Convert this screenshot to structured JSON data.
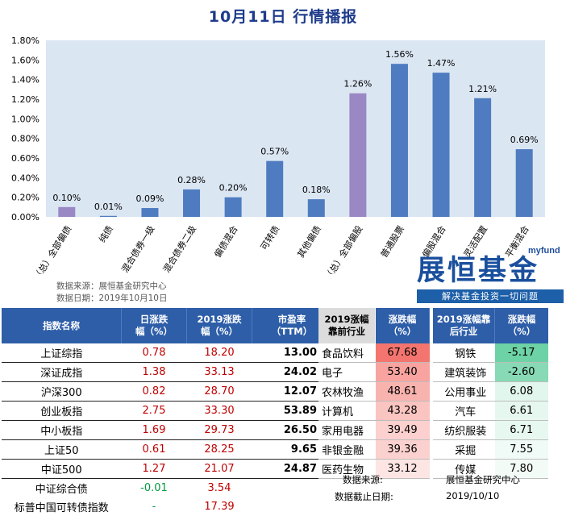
{
  "title": "10月11日  行情播报",
  "source_line": "数据来源：展恒基金研究中心",
  "date_line": "数据日期：2019年10月10日",
  "brand": {
    "top": "myfund",
    "name": "展恒基金",
    "slogan": "解决基金投资一切问题"
  },
  "colors": {
    "blue": "#4f7cc0",
    "purple": "#9a88c4",
    "red_high": "#f4756f",
    "green_low": "#6dd2a5"
  },
  "chart_data": {
    "type": "bar",
    "categories": [
      "（总）全部偏债",
      "纯债",
      "混合债券一级",
      "混合债券二级",
      "偏债混合",
      "可转债",
      "其他偏债",
      "（总）全部偏股",
      "普通股票",
      "偏股混合",
      "灵活配置",
      "平衡混合"
    ],
    "values": [
      0.1,
      0.01,
      0.09,
      0.28,
      0.2,
      0.57,
      0.18,
      1.26,
      1.56,
      1.47,
      1.21,
      0.69
    ],
    "data_labels": [
      "0.10%",
      "0.01%",
      "0.09%",
      "0.28%",
      "0.20%",
      "0.57%",
      "0.18%",
      "1.26%",
      "1.56%",
      "1.47%",
      "1.21%",
      "0.69%"
    ],
    "highlight": [
      0,
      7
    ],
    "yticks": [
      "0.00%",
      "0.20%",
      "0.40%",
      "0.60%",
      "0.80%",
      "1.00%",
      "1.20%",
      "1.40%",
      "1.60%",
      "1.80%"
    ],
    "ylim": [
      0,
      1.8
    ]
  },
  "index_table": {
    "headers": [
      "指数名称",
      "日涨跌\n幅（%）",
      "2019涨跌\n幅（%）",
      "市盈率\n（TTM）"
    ],
    "rows": [
      {
        "name": "上证综指",
        "day": "0.78",
        "ytd": "18.20",
        "pe": "13.00"
      },
      {
        "name": "深证成指",
        "day": "1.38",
        "ytd": "33.13",
        "pe": "24.02"
      },
      {
        "name": "沪深300",
        "day": "0.82",
        "ytd": "28.70",
        "pe": "12.07"
      },
      {
        "name": "创业板指",
        "day": "2.75",
        "ytd": "33.30",
        "pe": "53.89"
      },
      {
        "name": "中小板指",
        "day": "1.69",
        "ytd": "29.73",
        "pe": "26.50"
      },
      {
        "name": "上证50",
        "day": "0.61",
        "ytd": "28.25",
        "pe": "9.65"
      },
      {
        "name": "中证500",
        "day": "1.27",
        "ytd": "21.07",
        "pe": "24.87"
      },
      {
        "name": "中证综合债",
        "day": "-0.01",
        "ytd": "3.54",
        "pe": ""
      },
      {
        "name": "标普中国可转债指数",
        "day": "-",
        "ytd": "17.39",
        "pe": ""
      }
    ]
  },
  "industry_table": {
    "headers": [
      "2019涨幅\n靠前行业",
      "涨跌幅\n（%）",
      "2019涨幅靠\n后行业",
      "涨跌幅\n（%）"
    ],
    "rows": [
      {
        "top": "食品饮料",
        "top_v": "67.68",
        "bot": "钢铁",
        "bot_v": "-5.17"
      },
      {
        "top": "电子",
        "top_v": "53.40",
        "bot": "建筑装饰",
        "bot_v": "-2.60"
      },
      {
        "top": "农林牧渔",
        "top_v": "48.61",
        "bot": "公用事业",
        "bot_v": "6.08"
      },
      {
        "top": "计算机",
        "top_v": "43.28",
        "bot": "汽车",
        "bot_v": "6.61"
      },
      {
        "top": "家用电器",
        "top_v": "39.49",
        "bot": "纺织服装",
        "bot_v": "6.71"
      },
      {
        "top": "非银金融",
        "top_v": "39.36",
        "bot": "采掘",
        "bot_v": "7.55"
      },
      {
        "top": "医药生物",
        "top_v": "33.12",
        "bot": "传媒",
        "bot_v": "7.80"
      }
    ],
    "source_label": "数据来源:",
    "source_value": "展恒基金研究中心",
    "cutoff_label": "数据截止日期:",
    "cutoff_value": "2019/10/10"
  }
}
